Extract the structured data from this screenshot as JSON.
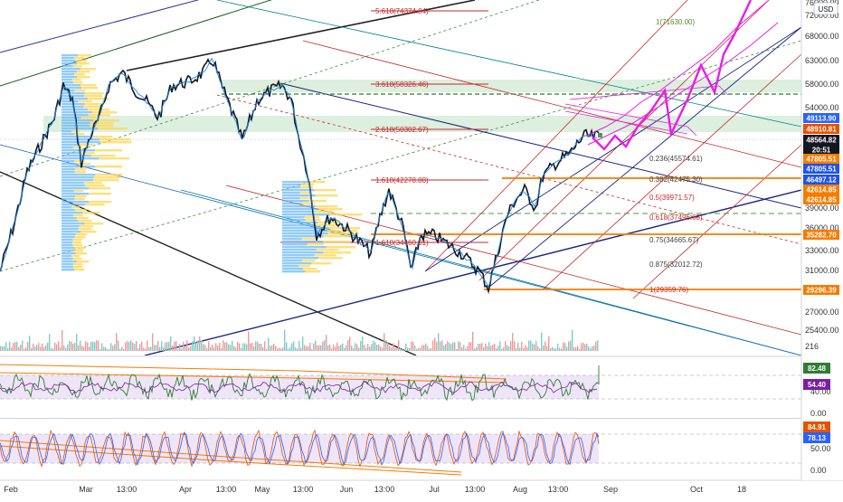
{
  "currency_button": "USD",
  "price_axis": [
    "76000.00",
    "72000.00",
    "68000.00",
    "63000.00",
    "58000.00",
    "54000.00",
    "50000.00",
    "44000.00",
    "39000.00",
    "36000.00",
    "33000.00",
    "31000.00",
    "29000.00",
    "27000.00",
    "25400.00",
    "216"
  ],
  "price_tags": [
    {
      "text": "49113.90",
      "color": "#2962ff"
    },
    {
      "text": "48910.81",
      "color": "#e65100"
    },
    {
      "text": "48564.82",
      "color": "#131722"
    },
    {
      "text": "20:51",
      "color": "#131722"
    },
    {
      "text": "47805.51",
      "color": "#f57c00"
    },
    {
      "text": "47805.51",
      "color": "#1e53e5"
    },
    {
      "text": "46497.12",
      "color": "#1e53e5"
    },
    {
      "text": "42614.85",
      "color": "#f57c00"
    },
    {
      "text": "42614.85",
      "color": "#f57c00"
    },
    {
      "text": "35282.70",
      "color": "#f57c00"
    },
    {
      "text": "29296.39",
      "color": "#f57c00"
    }
  ],
  "rsi_axis": [
    "40.00",
    "0.00"
  ],
  "rsi_tags": [
    {
      "text": "82.48",
      "color": "#2e7d32"
    },
    {
      "text": "54.40",
      "color": "#7b1fa2"
    }
  ],
  "stoch_axis": [
    "50.00",
    "0.00"
  ],
  "stoch_tags": [
    {
      "text": "84.91",
      "color": "#e65100"
    },
    {
      "text": "78.13",
      "color": "#2962ff"
    }
  ],
  "date_labels": [
    "Feb",
    "Mar",
    "13:00",
    "Apr",
    "13:00",
    "May",
    "13:00",
    "Jun",
    "13:00",
    "Jul",
    "13:00",
    "Aug",
    "13:00",
    "Sep",
    "Oct",
    "18"
  ],
  "fib_ext_labels": [
    "5.618(74374.84)",
    "3.618(58326.46)",
    "2.618(50302.67)",
    "1.618(42278.88)",
    "1.618(34460.01)"
  ],
  "fib_labels": [
    "1(71630.00)",
    "0.236(45574.61)",
    "0.382(42475.30)",
    "0.5(39971.57)",
    "0.618(37496.63)",
    "0.75(34665.67)",
    "0.875(32012.72)",
    "1(29359.76)"
  ]
}
